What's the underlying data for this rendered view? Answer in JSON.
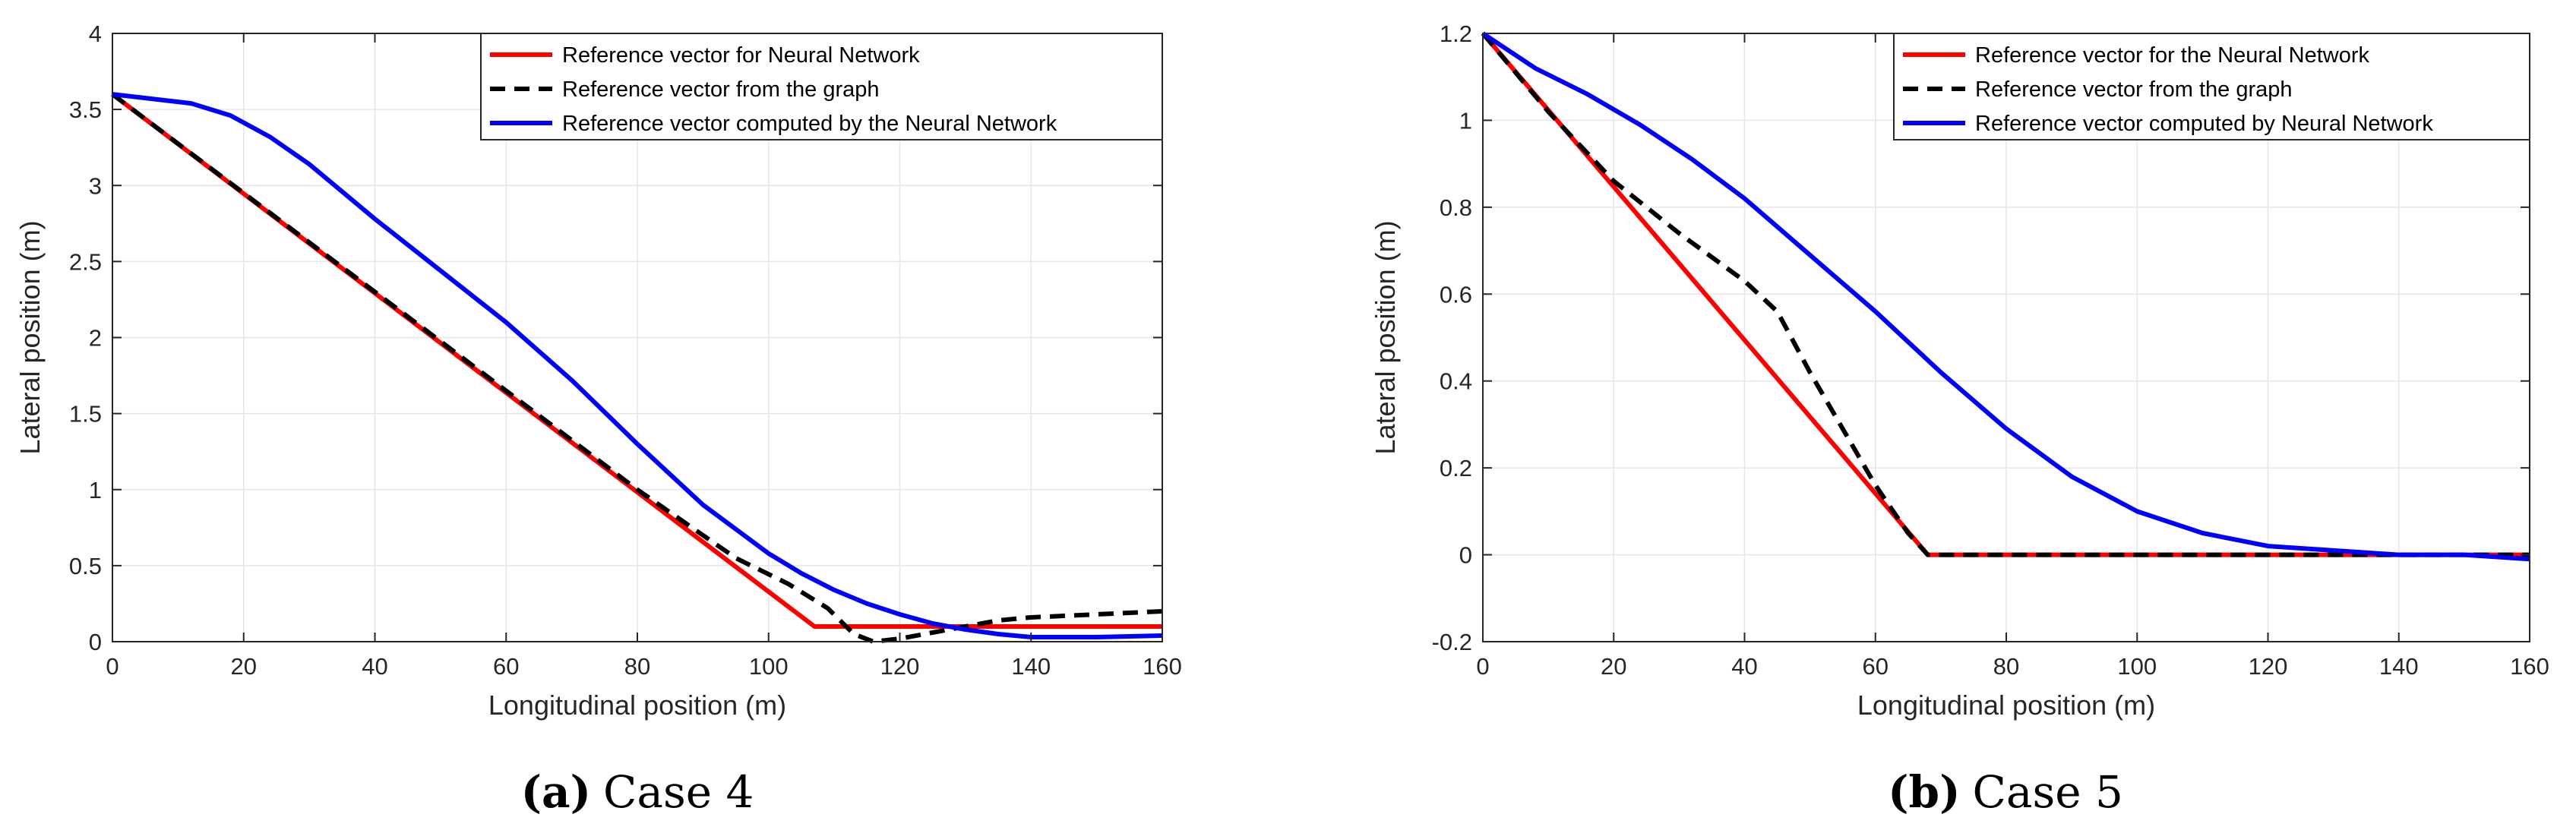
{
  "colors": {
    "red": "#ff0000",
    "black": "#000000",
    "blue": "#0000ff",
    "grid": "#e6e6e6",
    "axis": "#262626"
  },
  "chart_data": [
    {
      "type": "line",
      "caption_tag": "(a)",
      "caption_text": "Case 4",
      "xlabel": "Longitudinal position (m)",
      "ylabel": "Lateral position (m)",
      "xlim": [
        0,
        160
      ],
      "ylim": [
        0,
        4
      ],
      "xticks": [
        0,
        20,
        40,
        60,
        80,
        100,
        120,
        140,
        160
      ],
      "yticks": [
        0,
        0.5,
        1,
        1.5,
        2,
        2.5,
        3,
        3.5,
        4
      ],
      "ytick_labels": [
        "0",
        "0.5",
        "1",
        "1.5",
        "2",
        "2.5",
        "3",
        "3.5",
        "4"
      ],
      "grid": true,
      "legend_position": "top-right",
      "series": [
        {
          "name": "Reference vector for Neural Network",
          "color": "#ff0000",
          "style": "solid",
          "x": [
            0,
            107,
            160
          ],
          "y": [
            3.6,
            0.1,
            0.1
          ]
        },
        {
          "name": "Reference vector from the graph",
          "color": "#000000",
          "style": "dashed",
          "x": [
            0,
            20,
            40,
            60,
            80,
            95,
            103,
            109,
            113,
            116,
            120,
            125,
            130,
            135,
            140,
            150,
            160
          ],
          "y": [
            3.6,
            2.95,
            2.3,
            1.65,
            1.0,
            0.55,
            0.38,
            0.22,
            0.05,
            0.0,
            0.02,
            0.06,
            0.1,
            0.14,
            0.16,
            0.18,
            0.2
          ]
        },
        {
          "name": "Reference vector computed by the Neural Network",
          "color": "#0000ff",
          "style": "solid",
          "x": [
            0,
            6,
            12,
            18,
            24,
            30,
            40,
            50,
            60,
            70,
            80,
            90,
            100,
            105,
            110,
            115,
            120,
            125,
            130,
            135,
            140,
            150,
            160
          ],
          "y": [
            3.6,
            3.57,
            3.54,
            3.46,
            3.32,
            3.14,
            2.78,
            2.44,
            2.1,
            1.72,
            1.3,
            0.9,
            0.58,
            0.45,
            0.34,
            0.25,
            0.18,
            0.12,
            0.08,
            0.05,
            0.03,
            0.03,
            0.04
          ]
        }
      ]
    },
    {
      "type": "line",
      "caption_tag": "(b)",
      "caption_text": "Case 5",
      "xlabel": "Longitudinal position (m)",
      "ylabel": "Lateral position (m)",
      "xlim": [
        0,
        160
      ],
      "ylim": [
        -0.2,
        1.2
      ],
      "xticks": [
        0,
        20,
        40,
        60,
        80,
        100,
        120,
        140,
        160
      ],
      "yticks": [
        -0.2,
        0,
        0.2,
        0.4,
        0.6,
        0.8,
        1,
        1.2
      ],
      "ytick_labels": [
        "-0.2",
        "0",
        "0.2",
        "0.4",
        "0.6",
        "0.8",
        "1",
        "1.2"
      ],
      "grid": true,
      "legend_position": "top-right",
      "series": [
        {
          "name": "Reference vector for the Neural Network",
          "color": "#ff0000",
          "style": "solid",
          "x": [
            0,
            68,
            160
          ],
          "y": [
            1.2,
            0.0,
            0.0
          ]
        },
        {
          "name": "Reference vector from the graph",
          "color": "#000000",
          "style": "dashed",
          "x": [
            0,
            10,
            20,
            30,
            40,
            45,
            50,
            55,
            60,
            65,
            68,
            160
          ],
          "y": [
            1.2,
            1.02,
            0.86,
            0.74,
            0.63,
            0.56,
            0.42,
            0.29,
            0.16,
            0.05,
            0.0,
            0.0
          ]
        },
        {
          "name": "Reference vector computed by Neural Network",
          "color": "#0000ff",
          "style": "solid",
          "x": [
            0,
            8,
            16,
            24,
            32,
            40,
            50,
            60,
            70,
            80,
            90,
            100,
            110,
            120,
            130,
            140,
            150,
            160
          ],
          "y": [
            1.2,
            1.12,
            1.06,
            0.99,
            0.91,
            0.82,
            0.69,
            0.56,
            0.42,
            0.29,
            0.18,
            0.1,
            0.05,
            0.02,
            0.01,
            0.0,
            0.0,
            -0.01
          ]
        }
      ]
    }
  ]
}
